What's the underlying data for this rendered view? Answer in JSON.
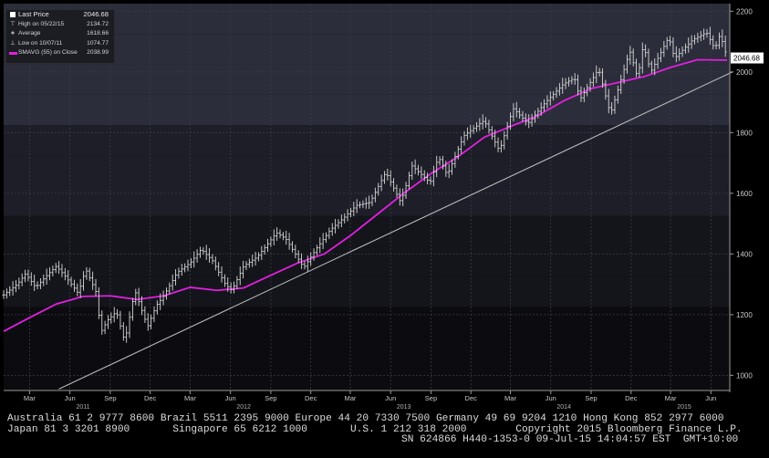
{
  "chart_data": {
    "type": "line",
    "y_axis": {
      "ylim": [
        950,
        2225
      ],
      "ticks": [
        1000,
        1200,
        1400,
        1600,
        1800,
        2000,
        2200
      ],
      "position": "right"
    },
    "x_axis": {
      "month_ticks": [
        {
          "label": "Mar",
          "date": "2011-03"
        },
        {
          "label": "Jun",
          "date": "2011-06"
        },
        {
          "label": "Sep",
          "date": "2011-09"
        },
        {
          "label": "Dec",
          "date": "2011-12"
        },
        {
          "label": "Mar",
          "date": "2012-03"
        },
        {
          "label": "Jun",
          "date": "2012-06"
        },
        {
          "label": "Sep",
          "date": "2012-09"
        },
        {
          "label": "Dec",
          "date": "2012-12"
        },
        {
          "label": "Mar",
          "date": "2013-03"
        },
        {
          "label": "Jun",
          "date": "2013-06"
        },
        {
          "label": "Sep",
          "date": "2013-09"
        },
        {
          "label": "Dec",
          "date": "2013-12"
        },
        {
          "label": "Mar",
          "date": "2014-03"
        },
        {
          "label": "Jun",
          "date": "2014-06"
        },
        {
          "label": "Sep",
          "date": "2014-09"
        },
        {
          "label": "Dec",
          "date": "2014-12"
        },
        {
          "label": "Mar",
          "date": "2015-03"
        },
        {
          "label": "Jun",
          "date": "2015-06"
        }
      ],
      "year_labels": [
        {
          "label": "2011",
          "date": "2011-07"
        },
        {
          "label": "2012",
          "date": "2012-07"
        },
        {
          "label": "2013",
          "date": "2013-07"
        },
        {
          "label": "2014",
          "date": "2014-07"
        },
        {
          "label": "2015",
          "date": "2015-04"
        }
      ]
    },
    "price_label": "2046.68",
    "legend": [
      {
        "label": "Last Price",
        "value": "2046.68",
        "symbol": "box"
      },
      {
        "label": "High on 05/22/15",
        "value": "2134.72",
        "symbol": "high"
      },
      {
        "label": "Average",
        "value": "1618.66",
        "symbol": "avg"
      },
      {
        "label": "Low on 10/07/11",
        "value": "1074.77",
        "symbol": "low"
      },
      {
        "label": "SMAVG (55) on Close",
        "value": "2038.99",
        "symbol": "bar"
      }
    ],
    "series": [
      {
        "name": "Last Price",
        "color": "#d8d8d8",
        "style": "ohlc-bars",
        "points": [
          [
            "2011-01-01",
            1265
          ],
          [
            "2011-02-01",
            1300
          ],
          [
            "2011-02-20",
            1335
          ],
          [
            "2011-03-15",
            1290
          ],
          [
            "2011-04-10",
            1330
          ],
          [
            "2011-05-01",
            1360
          ],
          [
            "2011-05-25",
            1320
          ],
          [
            "2011-06-20",
            1270
          ],
          [
            "2011-07-07",
            1350
          ],
          [
            "2011-08-01",
            1270
          ],
          [
            "2011-08-10",
            1140
          ],
          [
            "2011-08-25",
            1180
          ],
          [
            "2011-09-15",
            1210
          ],
          [
            "2011-10-04",
            1110
          ],
          [
            "2011-10-27",
            1280
          ],
          [
            "2011-11-25",
            1160
          ],
          [
            "2011-12-15",
            1230
          ],
          [
            "2011-12-30",
            1258
          ],
          [
            "2012-02-01",
            1340
          ],
          [
            "2012-03-01",
            1370
          ],
          [
            "2012-03-26",
            1415
          ],
          [
            "2012-04-20",
            1380
          ],
          [
            "2012-05-20",
            1300
          ],
          [
            "2012-06-04",
            1280
          ],
          [
            "2012-07-01",
            1360
          ],
          [
            "2012-08-01",
            1390
          ],
          [
            "2012-09-14",
            1470
          ],
          [
            "2012-10-05",
            1450
          ],
          [
            "2012-11-15",
            1355
          ],
          [
            "2012-12-15",
            1420
          ],
          [
            "2013-01-15",
            1480
          ],
          [
            "2013-02-15",
            1520
          ],
          [
            "2013-03-15",
            1560
          ],
          [
            "2013-04-15",
            1570
          ],
          [
            "2013-05-21",
            1670
          ],
          [
            "2013-06-24",
            1570
          ],
          [
            "2013-07-20",
            1690
          ],
          [
            "2013-08-30",
            1635
          ],
          [
            "2013-09-18",
            1720
          ],
          [
            "2013-10-08",
            1660
          ],
          [
            "2013-11-15",
            1790
          ],
          [
            "2013-12-31",
            1840
          ],
          [
            "2014-02-04",
            1740
          ],
          [
            "2014-03-07",
            1880
          ],
          [
            "2014-04-10",
            1830
          ],
          [
            "2014-05-20",
            1900
          ],
          [
            "2014-06-30",
            1960
          ],
          [
            "2014-07-25",
            1980
          ],
          [
            "2014-08-07",
            1910
          ],
          [
            "2014-09-18",
            2010
          ],
          [
            "2014-10-15",
            1860
          ],
          [
            "2014-11-28",
            2070
          ],
          [
            "2014-12-16",
            1980
          ],
          [
            "2014-12-29",
            2090
          ],
          [
            "2015-01-15",
            2000
          ],
          [
            "2015-02-25",
            2115
          ],
          [
            "2015-03-10",
            2045
          ],
          [
            "2015-04-20",
            2105
          ],
          [
            "2015-05-22",
            2130
          ],
          [
            "2015-06-10",
            2075
          ],
          [
            "2015-06-22",
            2125
          ],
          [
            "2015-07-08",
            2046
          ]
        ]
      },
      {
        "name": "SMAVG (55) on Close",
        "color": "#e020e0",
        "style": "line",
        "points": [
          [
            "2011-01-01",
            1145
          ],
          [
            "2011-03-01",
            1190
          ],
          [
            "2011-05-01",
            1235
          ],
          [
            "2011-07-01",
            1260
          ],
          [
            "2011-09-01",
            1262
          ],
          [
            "2011-11-01",
            1250
          ],
          [
            "2012-01-01",
            1262
          ],
          [
            "2012-03-01",
            1290
          ],
          [
            "2012-05-01",
            1280
          ],
          [
            "2012-07-01",
            1288
          ],
          [
            "2012-09-01",
            1330
          ],
          [
            "2012-11-01",
            1370
          ],
          [
            "2013-01-01",
            1400
          ],
          [
            "2013-03-01",
            1460
          ],
          [
            "2013-05-01",
            1530
          ],
          [
            "2013-07-01",
            1600
          ],
          [
            "2013-09-01",
            1665
          ],
          [
            "2013-11-01",
            1720
          ],
          [
            "2014-01-01",
            1785
          ],
          [
            "2014-03-01",
            1820
          ],
          [
            "2014-05-01",
            1855
          ],
          [
            "2014-07-01",
            1905
          ],
          [
            "2014-09-01",
            1945
          ],
          [
            "2014-11-01",
            1965
          ],
          [
            "2015-01-01",
            1985
          ],
          [
            "2015-03-01",
            2015
          ],
          [
            "2015-05-01",
            2040
          ],
          [
            "2015-07-08",
            2039
          ]
        ]
      },
      {
        "style": "line",
        "color": "#b8b8b8",
        "points": [
          [
            "2011-05-07",
            955
          ],
          [
            "2015-07-20",
            2000
          ]
        ]
      }
    ]
  },
  "footer": {
    "line1": "Australia 61 2 9777 8600 Brazil 5511 2395 9000 Europe 44 20 7330 7500 Germany 49 69 9204 1210 Hong Kong 852 2977 6000",
    "line2": "Japan 81 3 3201 8900       Singapore 65 6212 1000       U.S. 1 212 318 2000        Copyright 2015 Bloomberg Finance L.P.",
    "line3": "SN 624866 H440-1353-0 09-Jul-15 14:04:57 EST  GMT+10:00"
  },
  "colors": {
    "background": "#000000",
    "price": "#d8d8d8",
    "smavg": "#e020e0",
    "trendline": "#b8b8b8"
  }
}
